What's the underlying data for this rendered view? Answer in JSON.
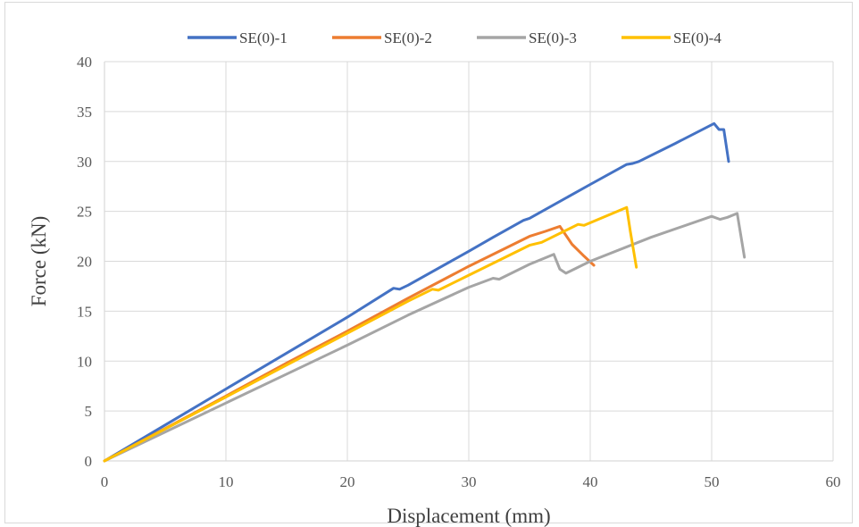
{
  "chart_data": {
    "type": "line",
    "title": "",
    "xlabel": "Displacement (mm)",
    "ylabel": "Force (kN)",
    "xlim": [
      0,
      60
    ],
    "ylim": [
      0,
      40
    ],
    "xticks": [
      "0",
      "10",
      "20",
      "30",
      "40",
      "50",
      "60"
    ],
    "yticks": [
      "0",
      "5",
      "10",
      "15",
      "20",
      "25",
      "30",
      "35",
      "40"
    ],
    "grid": true,
    "legend_position": "top",
    "series": [
      {
        "name": "SE(0)-1",
        "color": "#4472C4",
        "points": [
          [
            0,
            0
          ],
          [
            5,
            3.6
          ],
          [
            10,
            7.2
          ],
          [
            15,
            10.8
          ],
          [
            20,
            14.4
          ],
          [
            23.8,
            17.3
          ],
          [
            24.3,
            17.2
          ],
          [
            25,
            17.6
          ],
          [
            30,
            21.0
          ],
          [
            32,
            22.4
          ],
          [
            34.5,
            24.1
          ],
          [
            35,
            24.3
          ],
          [
            40,
            27.7
          ],
          [
            43,
            29.7
          ],
          [
            43.5,
            29.8
          ],
          [
            44,
            30.0
          ],
          [
            47,
            31.8
          ],
          [
            50.2,
            33.8
          ],
          [
            50.6,
            33.2
          ],
          [
            51,
            33.2
          ],
          [
            51.4,
            30.0
          ]
        ]
      },
      {
        "name": "SE(0)-2",
        "color": "#ED7D31",
        "points": [
          [
            0,
            0
          ],
          [
            5,
            3.25
          ],
          [
            10,
            6.5
          ],
          [
            15,
            9.8
          ],
          [
            20,
            13.0
          ],
          [
            25,
            16.3
          ],
          [
            30,
            19.5
          ],
          [
            35,
            22.5
          ],
          [
            36.3,
            23.0
          ],
          [
            37.5,
            23.5
          ],
          [
            38.5,
            21.7
          ],
          [
            39.5,
            20.5
          ],
          [
            40.3,
            19.6
          ]
        ]
      },
      {
        "name": "SE(0)-3",
        "color": "#A5A5A5",
        "points": [
          [
            0,
            0
          ],
          [
            5,
            2.9
          ],
          [
            10,
            5.8
          ],
          [
            15,
            8.7
          ],
          [
            20,
            11.6
          ],
          [
            25,
            14.6
          ],
          [
            30,
            17.4
          ],
          [
            32,
            18.3
          ],
          [
            32.5,
            18.2
          ],
          [
            35,
            19.7
          ],
          [
            37,
            20.7
          ],
          [
            37.5,
            19.2
          ],
          [
            38,
            18.8
          ],
          [
            40,
            20.0
          ],
          [
            45,
            22.4
          ],
          [
            50,
            24.5
          ],
          [
            50.7,
            24.2
          ],
          [
            51.3,
            24.4
          ],
          [
            52.1,
            24.8
          ],
          [
            52.7,
            20.4
          ]
        ]
      },
      {
        "name": "SE(0)-4",
        "color": "#FFC000",
        "points": [
          [
            0,
            0
          ],
          [
            5,
            3.2
          ],
          [
            10,
            6.4
          ],
          [
            15,
            9.6
          ],
          [
            20,
            12.8
          ],
          [
            25,
            16.0
          ],
          [
            27,
            17.2
          ],
          [
            27.5,
            17.1
          ],
          [
            30,
            18.6
          ],
          [
            35,
            21.6
          ],
          [
            36,
            21.9
          ],
          [
            39,
            23.7
          ],
          [
            39.5,
            23.6
          ],
          [
            43,
            25.4
          ],
          [
            43.3,
            23.0
          ],
          [
            43.8,
            19.4
          ]
        ]
      }
    ]
  }
}
